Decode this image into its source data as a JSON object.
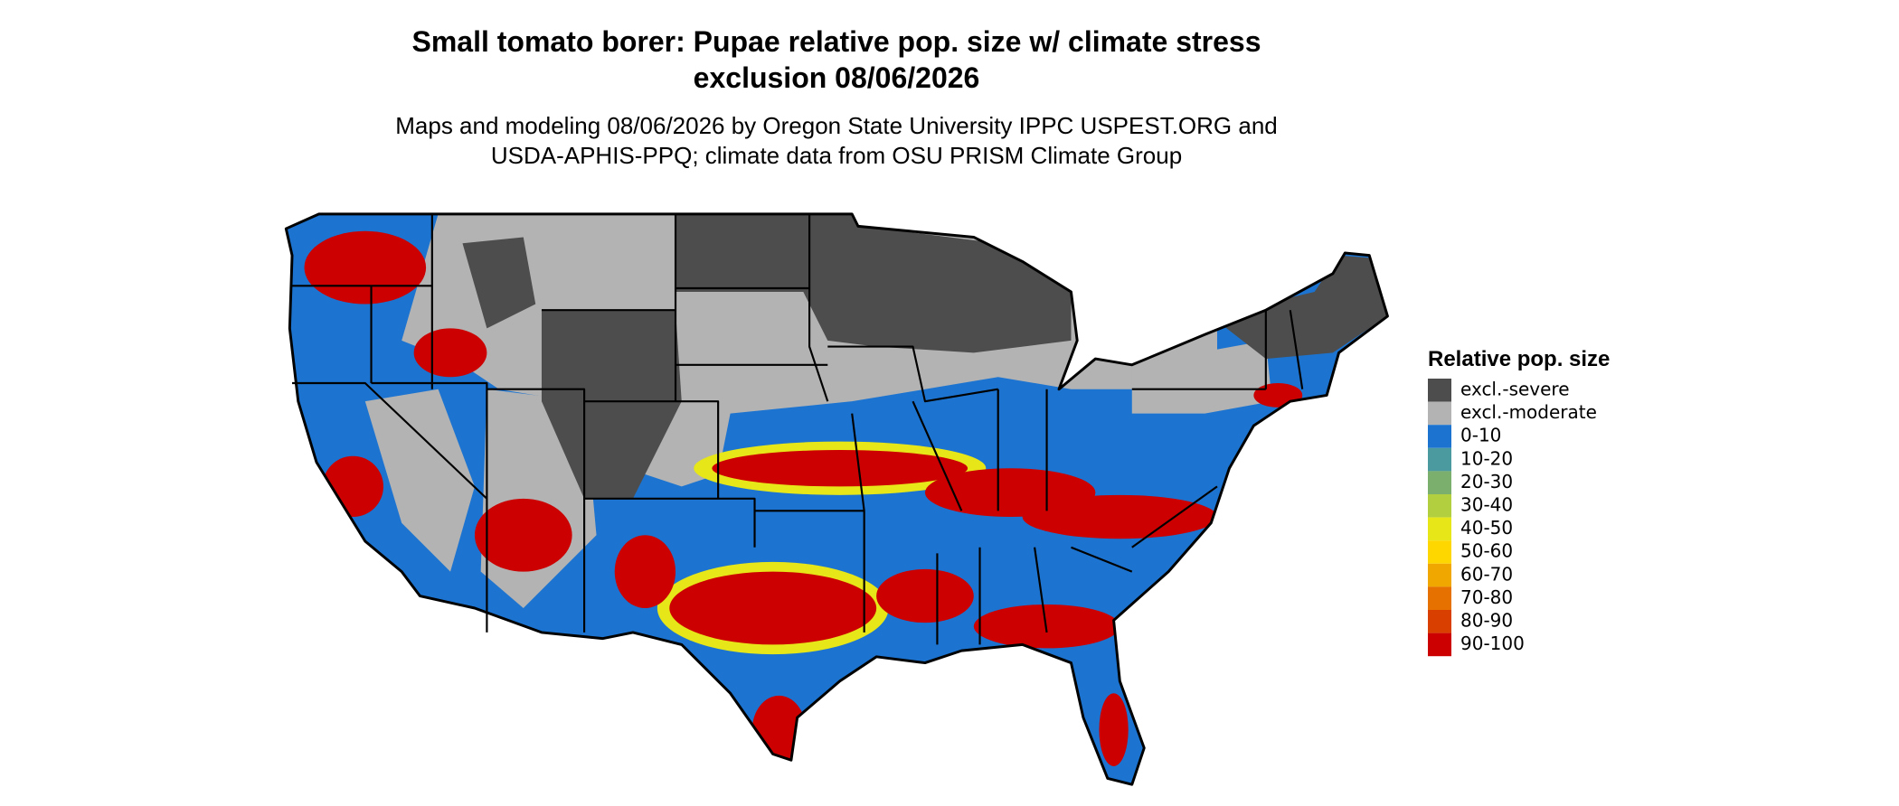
{
  "header": {
    "title_lines": [
      "Small tomato borer: Pupae relative pop. size w/ climate stress",
      "exclusion 08/06/2026"
    ],
    "subtitle_lines": [
      "Maps and modeling 08/06/2026 by Oregon State University IPPC USPEST.ORG and",
      "USDA-APHIS-PPQ; climate data from OSU PRISM Climate Group"
    ]
  },
  "legend": {
    "title": "Relative pop. size",
    "items": [
      {
        "label": "excl.-severe",
        "color": "#4d4d4d"
      },
      {
        "label": "excl.-moderate",
        "color": "#b3b3b3"
      },
      {
        "label": "0-10",
        "color": "#1c74d0"
      },
      {
        "label": "10-20",
        "color": "#4a9aa0"
      },
      {
        "label": "20-30",
        "color": "#7aaf6e"
      },
      {
        "label": "30-40",
        "color": "#b2cf40"
      },
      {
        "label": "40-50",
        "color": "#e6e619"
      },
      {
        "label": "50-60",
        "color": "#ffd700"
      },
      {
        "label": "60-70",
        "color": "#f0a800"
      },
      {
        "label": "70-80",
        "color": "#e67000"
      },
      {
        "label": "80-90",
        "color": "#d94000"
      },
      {
        "label": "90-100",
        "color": "#cc0000"
      }
    ]
  }
}
